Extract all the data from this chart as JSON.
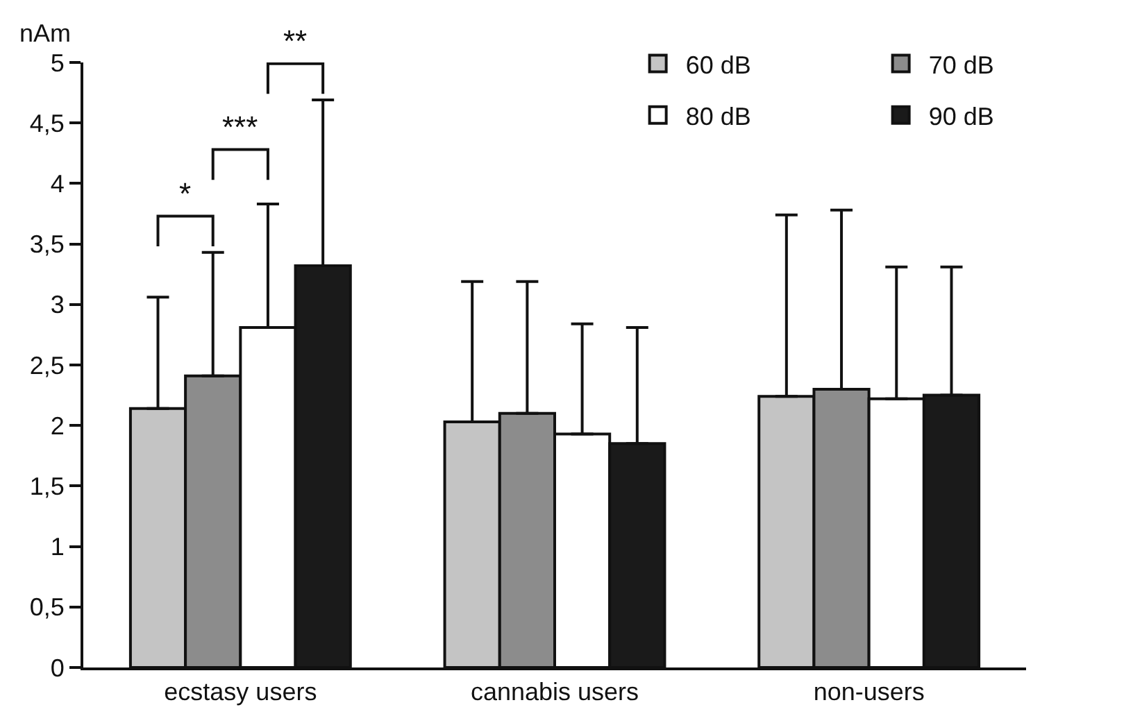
{
  "chart_data": {
    "type": "bar",
    "ylabel": "nAm",
    "categories": [
      "ecstasy users",
      "cannabis users",
      "non-users"
    ],
    "series": [
      {
        "name": "60 dB",
        "color": "#c4c4c4",
        "values": [
          2.14,
          2.03,
          2.24
        ],
        "errors": [
          [
            2.14,
            3.06
          ],
          [
            2.03,
            3.19
          ],
          [
            2.24,
            3.74
          ]
        ]
      },
      {
        "name": "70 dB",
        "color": "#8c8c8c",
        "values": [
          2.41,
          2.1,
          2.3
        ],
        "errors": [
          [
            2.41,
            3.43
          ],
          [
            2.1,
            3.19
          ],
          [
            2.3,
            3.78
          ]
        ]
      },
      {
        "name": "80 dB",
        "color": "#ffffff",
        "values": [
          2.81,
          1.93,
          2.22
        ],
        "errors": [
          [
            2.81,
            3.83
          ],
          [
            1.93,
            2.84
          ],
          [
            2.22,
            3.31
          ]
        ]
      },
      {
        "name": "90 dB",
        "color": "#1a1a1a",
        "values": [
          3.32,
          1.85,
          2.25
        ],
        "errors": [
          [
            3.32,
            4.69
          ],
          [
            1.85,
            2.81
          ],
          [
            2.25,
            3.31
          ]
        ]
      }
    ],
    "ylim": [
      0,
      5
    ],
    "yticks": [
      0,
      {
        "value": 0.5,
        "label": "0,5"
      },
      1,
      {
        "value": 1.5,
        "label": "1,5"
      },
      2,
      {
        "value": 2.5,
        "label": "2,5"
      },
      3,
      {
        "value": 3.5,
        "label": "3,5"
      },
      4,
      {
        "value": 4.5,
        "label": "4,5"
      },
      5
    ],
    "annotations": [
      "*",
      "***",
      "**"
    ],
    "grid": false,
    "legend": "top right"
  }
}
